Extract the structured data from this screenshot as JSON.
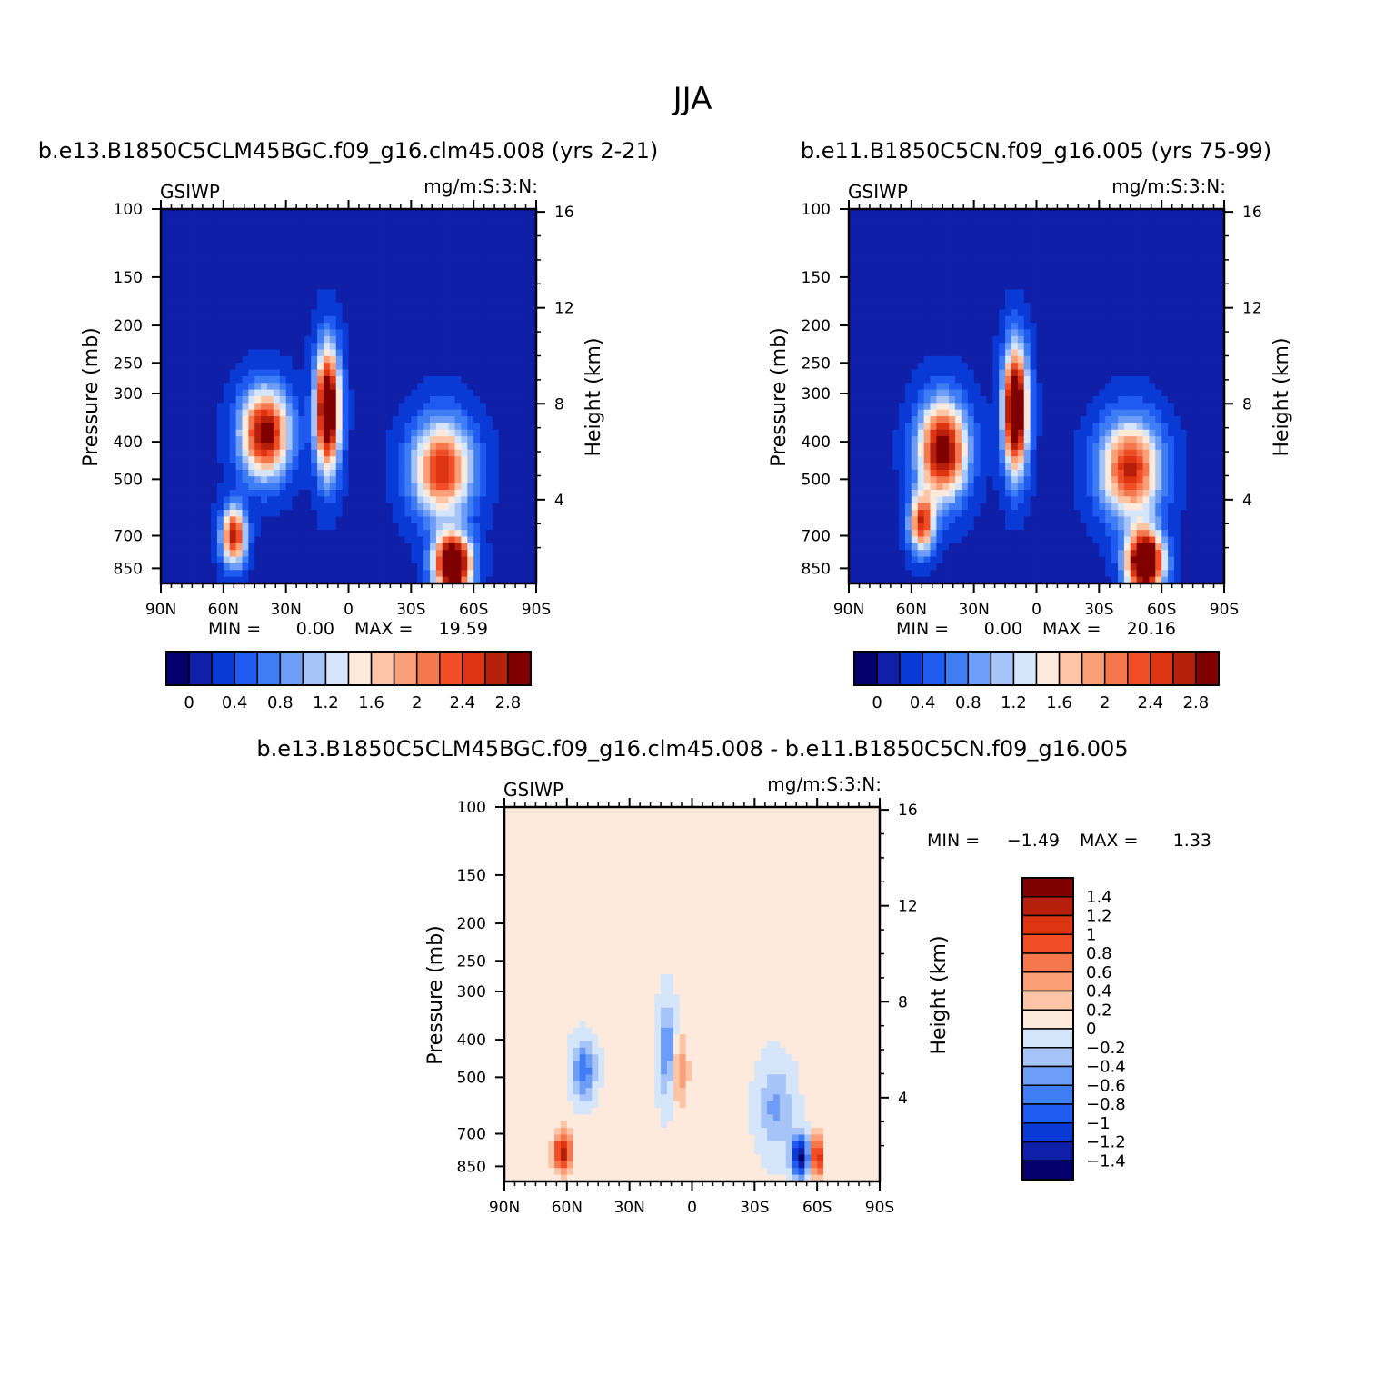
{
  "figure": {
    "title": "JJA"
  },
  "palettes": {
    "abs": [
      "#03006d",
      "#0f1fa8",
      "#0a3ad6",
      "#1f5bf1",
      "#3f7df5",
      "#6e9df7",
      "#a7c4f8",
      "#d5e6fb",
      "#feeadc",
      "#fdc4a6",
      "#fb9f78",
      "#f5774d",
      "#f14d27",
      "#dd3411",
      "#b61f0c",
      "#800000"
    ],
    "diff": [
      "#800000",
      "#b61f0c",
      "#dd3411",
      "#f14d27",
      "#f5774d",
      "#fb9f78",
      "#fdc4a6",
      "#feeadc",
      "#d5e6fb",
      "#a7c4f8",
      "#6e9df7",
      "#3f7df5",
      "#1f5bf1",
      "#0a3ad6",
      "#0f1fa8",
      "#03006d"
    ]
  },
  "chart_data": [
    {
      "type": "heatmap",
      "id": "case1",
      "title": "b.e13.B1850C5CLM45BGC.f09_g16.clm45.008 (yrs 2-21)",
      "left_label": "GSIWP",
      "right_label": "mg/m:S:3:N:",
      "xlabel": "",
      "ylabel": "Pressure (mb)",
      "y2label": "Height (km)",
      "x_ticks": [
        "90N",
        "60N",
        "30N",
        "0",
        "30S",
        "60S",
        "90S"
      ],
      "x_range": [
        90,
        -90
      ],
      "y_ticks": [
        100,
        150,
        200,
        250,
        300,
        400,
        500,
        700,
        850
      ],
      "y_range_mb": [
        100,
        930
      ],
      "y2_ticks": [
        16,
        12,
        8,
        4
      ],
      "stats": {
        "min_label": "MIN =",
        "min": "0.00",
        "max_label": "MAX =",
        "max": "19.59"
      },
      "colorbar": {
        "orientation": "horizontal",
        "levels": [
          "0",
          "0.4",
          "0.8",
          "1.2",
          "1.6",
          "2",
          "2.4",
          "2.8"
        ]
      },
      "features": [
        {
          "lat": 10,
          "p": 330,
          "amp": 3.6,
          "s_lat": 4,
          "s_p": 0.25
        },
        {
          "lat": 40,
          "p": 380,
          "amp": 2.9,
          "s_lat": 8,
          "s_p": 0.18
        },
        {
          "lat": 55,
          "p": 700,
          "amp": 2.6,
          "s_lat": 4,
          "s_p": 0.12
        },
        {
          "lat": -50,
          "p": 830,
          "amp": 4.0,
          "s_lat": 6,
          "s_p": 0.12
        },
        {
          "lat": -45,
          "p": 470,
          "amp": 2.4,
          "s_lat": 10,
          "s_p": 0.2
        }
      ]
    },
    {
      "type": "heatmap",
      "id": "case2",
      "title": "b.e11.B1850C5CN.f09_g16.005 (yrs 75-99)",
      "left_label": "GSIWP",
      "right_label": "mg/m:S:3:N:",
      "xlabel": "",
      "ylabel": "Pressure (mb)",
      "y2label": "Height (km)",
      "x_ticks": [
        "90N",
        "60N",
        "30N",
        "0",
        "30S",
        "60S",
        "90S"
      ],
      "x_range": [
        90,
        -90
      ],
      "y_ticks": [
        100,
        150,
        200,
        250,
        300,
        400,
        500,
        700,
        850
      ],
      "y_range_mb": [
        100,
        930
      ],
      "y2_ticks": [
        16,
        12,
        8,
        4
      ],
      "stats": {
        "min_label": "MIN =",
        "min": "0.00",
        "max_label": "MAX =",
        "max": "20.16"
      },
      "colorbar": {
        "orientation": "horizontal",
        "levels": [
          "0",
          "0.4",
          "0.8",
          "1.2",
          "1.6",
          "2",
          "2.4",
          "2.8"
        ]
      },
      "features": [
        {
          "lat": 10,
          "p": 330,
          "amp": 3.7,
          "s_lat": 4,
          "s_p": 0.25
        },
        {
          "lat": 45,
          "p": 420,
          "amp": 3.0,
          "s_lat": 8,
          "s_p": 0.2
        },
        {
          "lat": 55,
          "p": 650,
          "amp": 2.4,
          "s_lat": 4,
          "s_p": 0.12
        },
        {
          "lat": -52,
          "p": 820,
          "amp": 4.0,
          "s_lat": 6,
          "s_p": 0.13
        },
        {
          "lat": -45,
          "p": 470,
          "amp": 2.5,
          "s_lat": 10,
          "s_p": 0.2
        }
      ]
    },
    {
      "type": "heatmap",
      "id": "diff",
      "title": "b.e13.B1850C5CLM45BGC.f09_g16.clm45.008 - b.e11.B1850C5CN.f09_g16.005",
      "left_label": "GSIWP",
      "right_label": "mg/m:S:3:N:",
      "xlabel": "",
      "ylabel": "Pressure (mb)",
      "y2label": "Height (km)",
      "x_ticks": [
        "90N",
        "60N",
        "30N",
        "0",
        "30S",
        "60S",
        "90S"
      ],
      "x_range": [
        90,
        -90
      ],
      "y_ticks": [
        100,
        150,
        200,
        250,
        300,
        400,
        500,
        700,
        850
      ],
      "y_range_mb": [
        100,
        930
      ],
      "y2_ticks": [
        16,
        12,
        8,
        4
      ],
      "stats": {
        "min_label": "MIN =",
        "min": "-1.49",
        "max_label": "MAX =",
        "max": "1.33"
      },
      "colorbar": {
        "orientation": "vertical",
        "levels": [
          "1.4",
          "1.2",
          "1",
          "0.8",
          "0.6",
          "0.4",
          "0.2",
          "0",
          "-0.2",
          "-0.4",
          "-0.6",
          "-0.8",
          "-1",
          "-1.2",
          "-1.4"
        ]
      },
      "features": [
        {
          "lat": 62,
          "p": 780,
          "amp": 1.3,
          "s_lat": 3,
          "s_p": 0.08
        },
        {
          "lat": -52,
          "p": 800,
          "amp": -1.5,
          "s_lat": 3,
          "s_p": 0.09
        },
        {
          "lat": -60,
          "p": 800,
          "amp": 1.3,
          "s_lat": 2,
          "s_p": 0.09
        },
        {
          "lat": 52,
          "p": 480,
          "amp": -0.8,
          "s_lat": 4,
          "s_p": 0.12
        },
        {
          "lat": 12,
          "p": 430,
          "amp": -0.7,
          "s_lat": 3,
          "s_p": 0.2
        },
        {
          "lat": 6,
          "p": 480,
          "amp": 0.5,
          "s_lat": 3,
          "s_p": 0.15
        },
        {
          "lat": -40,
          "p": 600,
          "amp": -0.5,
          "s_lat": 6,
          "s_p": 0.18
        }
      ]
    }
  ]
}
